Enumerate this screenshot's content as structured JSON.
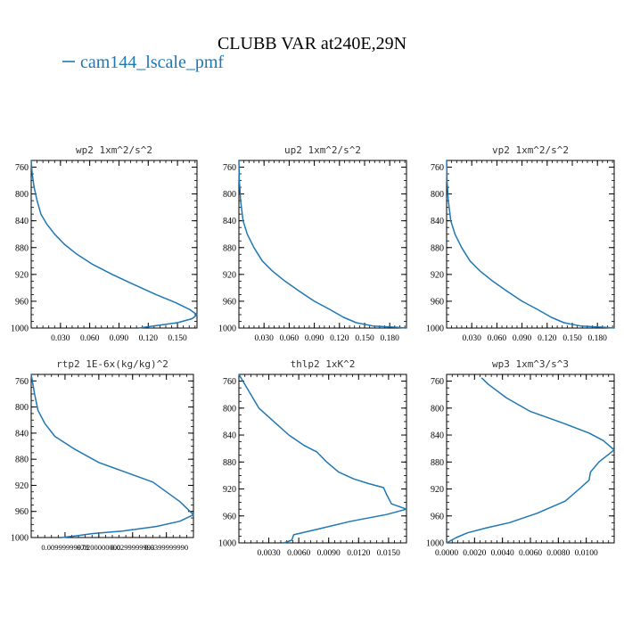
{
  "figure": {
    "title": "CLUBB VAR at240E,29N",
    "legend_label": "cam144_lscale_pmf",
    "line_color": "#1f77b4"
  },
  "chart_data": [
    {
      "type": "line",
      "title": "wp2  1xm^2/s^2",
      "ylim": [
        1000,
        750
      ],
      "yticks": [
        760,
        800,
        840,
        880,
        920,
        960,
        1000
      ],
      "xlim": [
        0,
        0.17
      ],
      "xticks": [
        0.03,
        0.06,
        0.09,
        0.12,
        0.15
      ],
      "xtick_labels": [
        "0.030",
        "0.060",
        "0.090",
        "0.120",
        "0.150"
      ],
      "series": [
        {
          "x": [
            0.0,
            0.001,
            0.003,
            0.006,
            0.01,
            0.016,
            0.024,
            0.034,
            0.047,
            0.063,
            0.083,
            0.105,
            0.128,
            0.148,
            0.162,
            0.17,
            0.165,
            0.15,
            0.11
          ],
          "y": [
            750,
            770,
            790,
            810,
            830,
            845,
            860,
            875,
            890,
            905,
            920,
            935,
            950,
            962,
            972,
            980,
            986,
            992,
            1000
          ]
        }
      ]
    },
    {
      "type": "line",
      "title": "up2  1xm^2/s^2",
      "ylim": [
        1000,
        750
      ],
      "yticks": [
        760,
        800,
        840,
        880,
        920,
        960,
        1000
      ],
      "xlim": [
        0,
        0.2
      ],
      "xticks": [
        0.03,
        0.06,
        0.09,
        0.12,
        0.15,
        0.18
      ],
      "xtick_labels": [
        "0.030",
        "0.060",
        "0.090",
        "0.120",
        "0.150",
        "0.180"
      ],
      "series": [
        {
          "x": [
            0.0,
            0.0005,
            0.002,
            0.005,
            0.01,
            0.018,
            0.028,
            0.04,
            0.055,
            0.072,
            0.09,
            0.108,
            0.125,
            0.14,
            0.16,
            0.19,
            0.2
          ],
          "y": [
            750,
            780,
            810,
            840,
            860,
            880,
            900,
            915,
            930,
            945,
            960,
            972,
            984,
            992,
            997,
            999,
            1000
          ]
        }
      ]
    },
    {
      "type": "line",
      "title": "vp2  1xm^2/s^2",
      "ylim": [
        1000,
        750
      ],
      "yticks": [
        760,
        800,
        840,
        880,
        920,
        960,
        1000
      ],
      "xlim": [
        0,
        0.2
      ],
      "xticks": [
        0.03,
        0.06,
        0.09,
        0.12,
        0.15,
        0.18
      ],
      "xtick_labels": [
        "0.030",
        "0.060",
        "0.090",
        "0.120",
        "0.150",
        "0.180"
      ],
      "series": [
        {
          "x": [
            0.0,
            0.0005,
            0.002,
            0.005,
            0.01,
            0.018,
            0.028,
            0.04,
            0.055,
            0.072,
            0.09,
            0.108,
            0.125,
            0.14,
            0.16,
            0.19,
            0.2
          ],
          "y": [
            750,
            780,
            810,
            840,
            860,
            880,
            900,
            915,
            930,
            945,
            960,
            972,
            984,
            992,
            997,
            999,
            1000
          ]
        }
      ]
    },
    {
      "type": "line",
      "title": "rtp2  1E-6x(kg/kg)^2",
      "ylim": [
        1000,
        750
      ],
      "yticks": [
        760,
        800,
        840,
        880,
        920,
        960,
        1000
      ],
      "xlim": [
        0,
        0.048
      ],
      "xticks": [
        0.01,
        0.02,
        0.03,
        0.04
      ],
      "xtick_labels": [
        "0.00999999978",
        "0.0200000000",
        "0.0299999993",
        "0.0399999990"
      ],
      "series": [
        {
          "x": [
            0.0,
            0.001,
            0.002,
            0.004,
            0.007,
            0.013,
            0.02,
            0.028,
            0.036,
            0.04,
            0.044,
            0.048,
            0.044,
            0.037,
            0.027,
            0.018,
            0.014,
            0.009
          ],
          "y": [
            750,
            780,
            805,
            825,
            845,
            865,
            885,
            900,
            915,
            930,
            945,
            965,
            975,
            983,
            990,
            994,
            997,
            1000
          ]
        }
      ]
    },
    {
      "type": "line",
      "title": "thlp2  1xK^2",
      "ylim": [
        1000,
        750
      ],
      "yticks": [
        760,
        800,
        840,
        880,
        920,
        960,
        1000
      ],
      "xlim": [
        0,
        0.0168
      ],
      "xticks": [
        0.003,
        0.006,
        0.009,
        0.012,
        0.015
      ],
      "xtick_labels": [
        "0.0030",
        "0.0060",
        "0.0090",
        "0.0120",
        "0.0150"
      ],
      "series": [
        {
          "x": [
            0.0,
            0.001,
            0.002,
            0.0035,
            0.005,
            0.0065,
            0.0078,
            0.0088,
            0.01,
            0.0115,
            0.013,
            0.0145,
            0.0148,
            0.0153,
            0.0168,
            0.0148,
            0.0112,
            0.0078,
            0.0055,
            0.0053,
            0.0045
          ],
          "y": [
            750,
            775,
            800,
            820,
            840,
            855,
            865,
            880,
            895,
            905,
            912,
            918,
            928,
            942,
            950,
            958,
            968,
            980,
            988,
            996,
            1000
          ]
        }
      ]
    },
    {
      "type": "line",
      "title": "wp3  1xm^3/s^3",
      "ylim": [
        1000,
        750
      ],
      "yticks": [
        760,
        800,
        840,
        880,
        920,
        960,
        1000
      ],
      "xlim": [
        0,
        0.012
      ],
      "xticks": [
        0.0,
        0.002,
        0.004,
        0.006,
        0.008,
        0.01
      ],
      "xtick_labels": [
        "0.0000",
        "0.0020",
        "0.0040",
        "0.0060",
        "0.0080",
        "0.0100"
      ],
      "series": [
        {
          "x": [
            0.0025,
            0.003,
            0.0043,
            0.006,
            0.0083,
            0.0102,
            0.0112,
            0.012,
            0.0109,
            0.0103,
            0.0102,
            0.0095,
            0.0085,
            0.0065,
            0.0045,
            0.0028,
            0.0015,
            0.0007,
            0.0
          ],
          "y": [
            755,
            765,
            785,
            805,
            822,
            837,
            848,
            862,
            880,
            895,
            907,
            920,
            938,
            956,
            970,
            978,
            985,
            992,
            1000
          ]
        }
      ]
    }
  ]
}
